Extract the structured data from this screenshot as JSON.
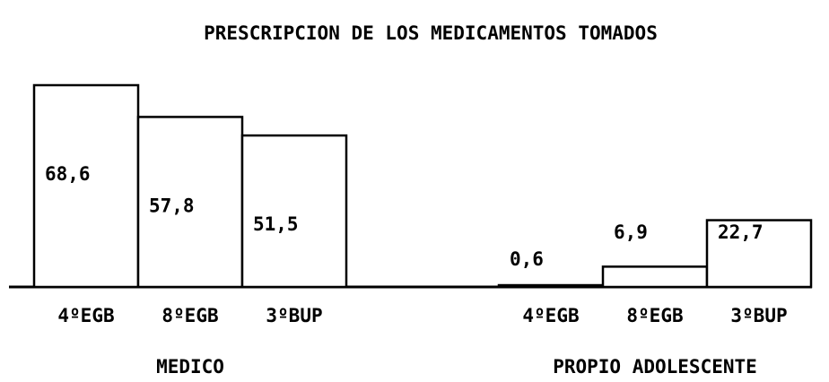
{
  "chart_data": {
    "type": "bar",
    "title": "PRESCRIPCION DE LOS MEDICAMENTOS TOMADOS",
    "groups": [
      {
        "name": "MEDICO",
        "categories": [
          "4ºEGB",
          "8ºEGB",
          "3ºBUP"
        ],
        "values": [
          68.6,
          57.8,
          51.5
        ],
        "value_labels": [
          "68,6",
          "57,8",
          "51,5"
        ]
      },
      {
        "name": "PROPIO ADOLESCENTE",
        "categories": [
          "4ºEGB",
          "8ºEGB",
          "3ºBUP"
        ],
        "values": [
          0.6,
          6.9,
          22.7
        ],
        "value_labels": [
          "0,6",
          "6,9",
          "22,7"
        ]
      }
    ]
  }
}
